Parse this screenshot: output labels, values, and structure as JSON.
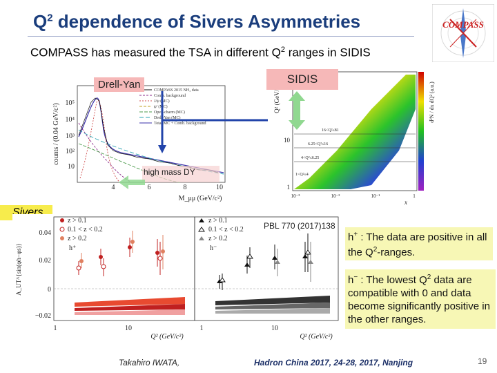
{
  "title": {
    "prefix": "Q",
    "sup": "2",
    "rest": " dependence of Sivers Asymmetries"
  },
  "subtitle": {
    "part1": "COMPASS has measured the TSA in different Q",
    "sup": "2",
    "part2": " ranges in SIDIS"
  },
  "logo": {
    "text": "COMPASS",
    "accent": "#cc2222",
    "needle": "#4a78c9"
  },
  "labels": {
    "drell_yan": "Drell-Yan",
    "sidis": "SIDIS",
    "high_mass_dy": "high mass DY",
    "sivers": "Sivers",
    "reference": "PBL 770 (2017)138"
  },
  "dy_plot": {
    "ylabel": "counts / (0.04 GeV/c²)",
    "xlabel": "M_μμ (GeV/c²)",
    "yticks": [
      "10⁵",
      "10⁴",
      "10³",
      "10²",
      "10"
    ],
    "xticks": [
      "4",
      "6",
      "8",
      "10"
    ],
    "legend": [
      "COMPASS 2015 NH₃ data",
      "Comb. background",
      "J/ψ (MC)",
      "ψ' (MC)",
      "Open-charm (MC)",
      "Drell-Yan (MC)",
      "Total MC + Comb. background"
    ]
  },
  "sidis_plot": {
    "ylabel": "Q² (GeV/c²)",
    "xlabel": "x",
    "zlabel": "d²N / dx dQ² (a.u.)",
    "yticks": [
      "10",
      "1"
    ],
    "xticks": [
      "10⁻³",
      "10⁻²",
      "10⁻¹",
      "1"
    ],
    "ranges": [
      "16<Q²≤81",
      "6.25<Q²≤16",
      "4<Q²≤6.25",
      "1<Q²≤4"
    ]
  },
  "sivers_plot": {
    "ylabel": "A_UT^{sin(φh−φs)}",
    "yticks": [
      "0.04",
      "0.02",
      "0",
      "−0.02"
    ],
    "xticks": [
      "1",
      "10"
    ],
    "xlabel": "Q² (GeV/c²)",
    "legend_left": [
      "z > 0.1",
      "0.1 < z < 0.2",
      "z > 0.2"
    ],
    "legend_right": [
      "z > 0.1",
      "0.1 < z < 0.2",
      "z > 0.2"
    ],
    "hadron_left": "h⁺",
    "hadron_right": "h⁻"
  },
  "notes": {
    "hplus_a": "h",
    "hplus_sup": "+",
    "hplus_b": " : The data are  positive in all the Q",
    "hplus_sup2": "2",
    "hplus_c": "-ranges.",
    "hminus_a": "h",
    "hminus_sup": "−",
    "hminus_b": " : The lowest Q",
    "hminus_sup2": "2",
    "hminus_c": " data are compatible with 0 and  data become significantly positive in the other ranges."
  },
  "footer": {
    "author": "Takahiro IWATA,",
    "conference": "Hadron China 2017, 24-28, 2017, Nanjing",
    "page": "19"
  }
}
